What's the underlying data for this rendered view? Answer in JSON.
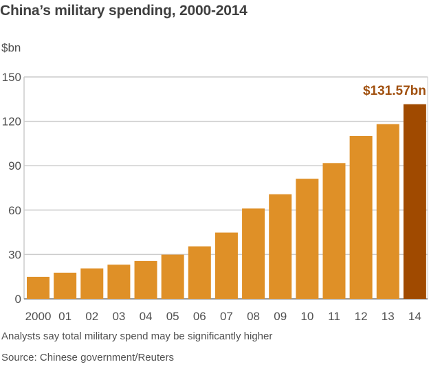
{
  "header": {
    "title": "China’s military spending, 2000-2014",
    "unit": "$bn"
  },
  "footer": {
    "note": "Analysts say total military spend may be significantly higher",
    "source": "Source: Chinese government/Reuters"
  },
  "colors": {
    "bar": "#df9027",
    "highlight": "#a04a00",
    "annotation": "#a0500f",
    "grid": "#cccccc",
    "axis": "#999999"
  },
  "chart_data": {
    "type": "bar",
    "title": "China’s military spending, 2000-2014",
    "xlabel": "",
    "ylabel": "$bn",
    "categories": [
      "2000",
      "01",
      "02",
      "03",
      "04",
      "05",
      "06",
      "07",
      "08",
      "09",
      "10",
      "11",
      "12",
      "13",
      "14"
    ],
    "values": [
      14.9,
      17.7,
      20.6,
      23.1,
      25.6,
      29.9,
      35.5,
      44.8,
      61.1,
      70.7,
      81.2,
      91.8,
      110.1,
      118.1,
      131.57
    ],
    "ylim": [
      0,
      150
    ],
    "yticks": [
      0,
      30,
      60,
      90,
      120,
      150
    ],
    "grid": true,
    "highlight_index": 14,
    "annotations": [
      {
        "category": "14",
        "text": "$131.57bn"
      }
    ]
  }
}
